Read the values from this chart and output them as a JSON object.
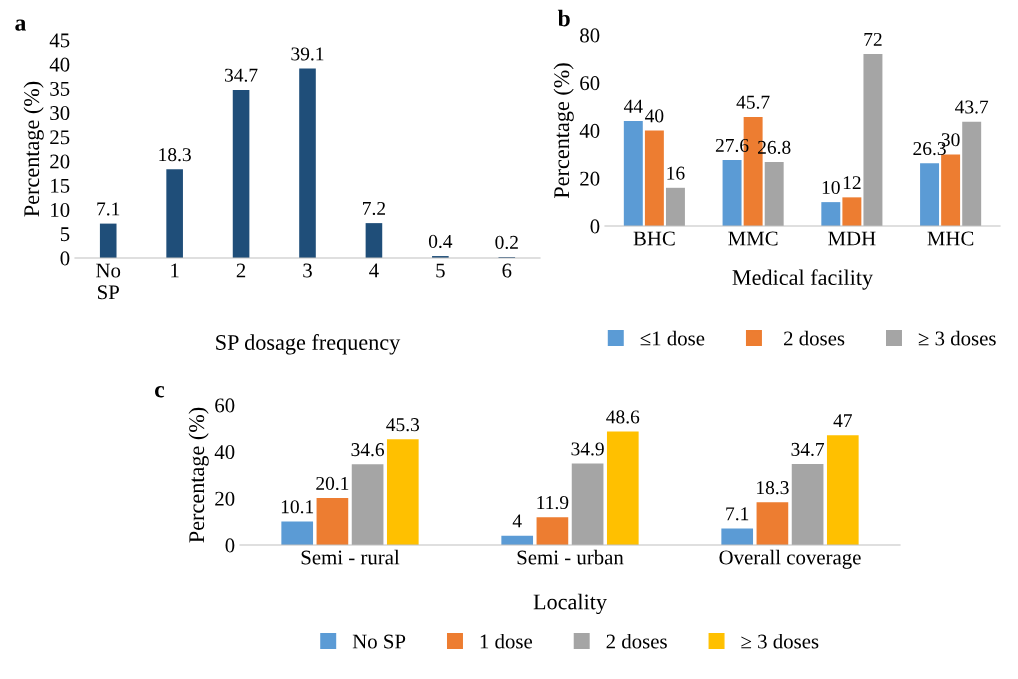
{
  "chart_data": [
    {
      "type": "bar",
      "title": "a",
      "xlabel": "SP dosage frequency",
      "ylabel": "Percentage (%)",
      "categories": [
        "No\nSP",
        "1",
        "2",
        "3",
        "4",
        "5",
        "6"
      ],
      "series": [
        {
          "color": "#1f4e79",
          "values": [
            7.1,
            18.3,
            34.7,
            39.1,
            7.2,
            0.4,
            0.2
          ]
        }
      ],
      "ylim": [
        0,
        45
      ],
      "yticks": [
        0,
        5,
        10,
        15,
        20,
        25,
        30,
        35,
        40,
        45
      ],
      "data_labels": true,
      "grid": false,
      "legend": false
    },
    {
      "type": "bar",
      "title": "b",
      "xlabel": "Medical facility",
      "ylabel": "Percentage (%)",
      "categories": [
        "BHC",
        "MMC",
        "MDH",
        "MHC"
      ],
      "series": [
        {
          "name": "≤1 dose",
          "color": "#5b9bd5",
          "values": [
            44,
            27.6,
            10,
            26.3
          ]
        },
        {
          "name": " 2 doses",
          "color": "#ed7d31",
          "values": [
            40,
            45.7,
            12,
            30
          ]
        },
        {
          "name": "≥ 3 doses",
          "color": "#a5a5a5",
          "values": [
            16,
            26.8,
            72,
            43.7
          ]
        }
      ],
      "ylim": [
        0,
        80
      ],
      "yticks": [
        0,
        20,
        40,
        60,
        80
      ],
      "data_labels": true,
      "grid": false,
      "legend": "bottom"
    },
    {
      "type": "bar",
      "title": "c",
      "xlabel": "Locality",
      "ylabel": "Percentage (%)",
      "categories": [
        "Semi - rural",
        "Semi - urban",
        "Overall coverage"
      ],
      "series": [
        {
          "name": "No SP",
          "color": "#5b9bd5",
          "values": [
            10.1,
            4,
            7.1
          ]
        },
        {
          "name": "1 dose",
          "color": "#ed7d31",
          "values": [
            20.1,
            11.9,
            18.3
          ]
        },
        {
          "name": "2 doses",
          "color": "#a5a5a5",
          "values": [
            34.6,
            34.9,
            34.7
          ]
        },
        {
          "name": "≥ 3 doses",
          "color": "#ffc000",
          "values": [
            45.3,
            48.6,
            47
          ]
        }
      ],
      "ylim": [
        0,
        60
      ],
      "yticks": [
        0,
        20,
        40,
        60
      ],
      "data_labels": true,
      "grid": false,
      "legend": "bottom"
    }
  ]
}
